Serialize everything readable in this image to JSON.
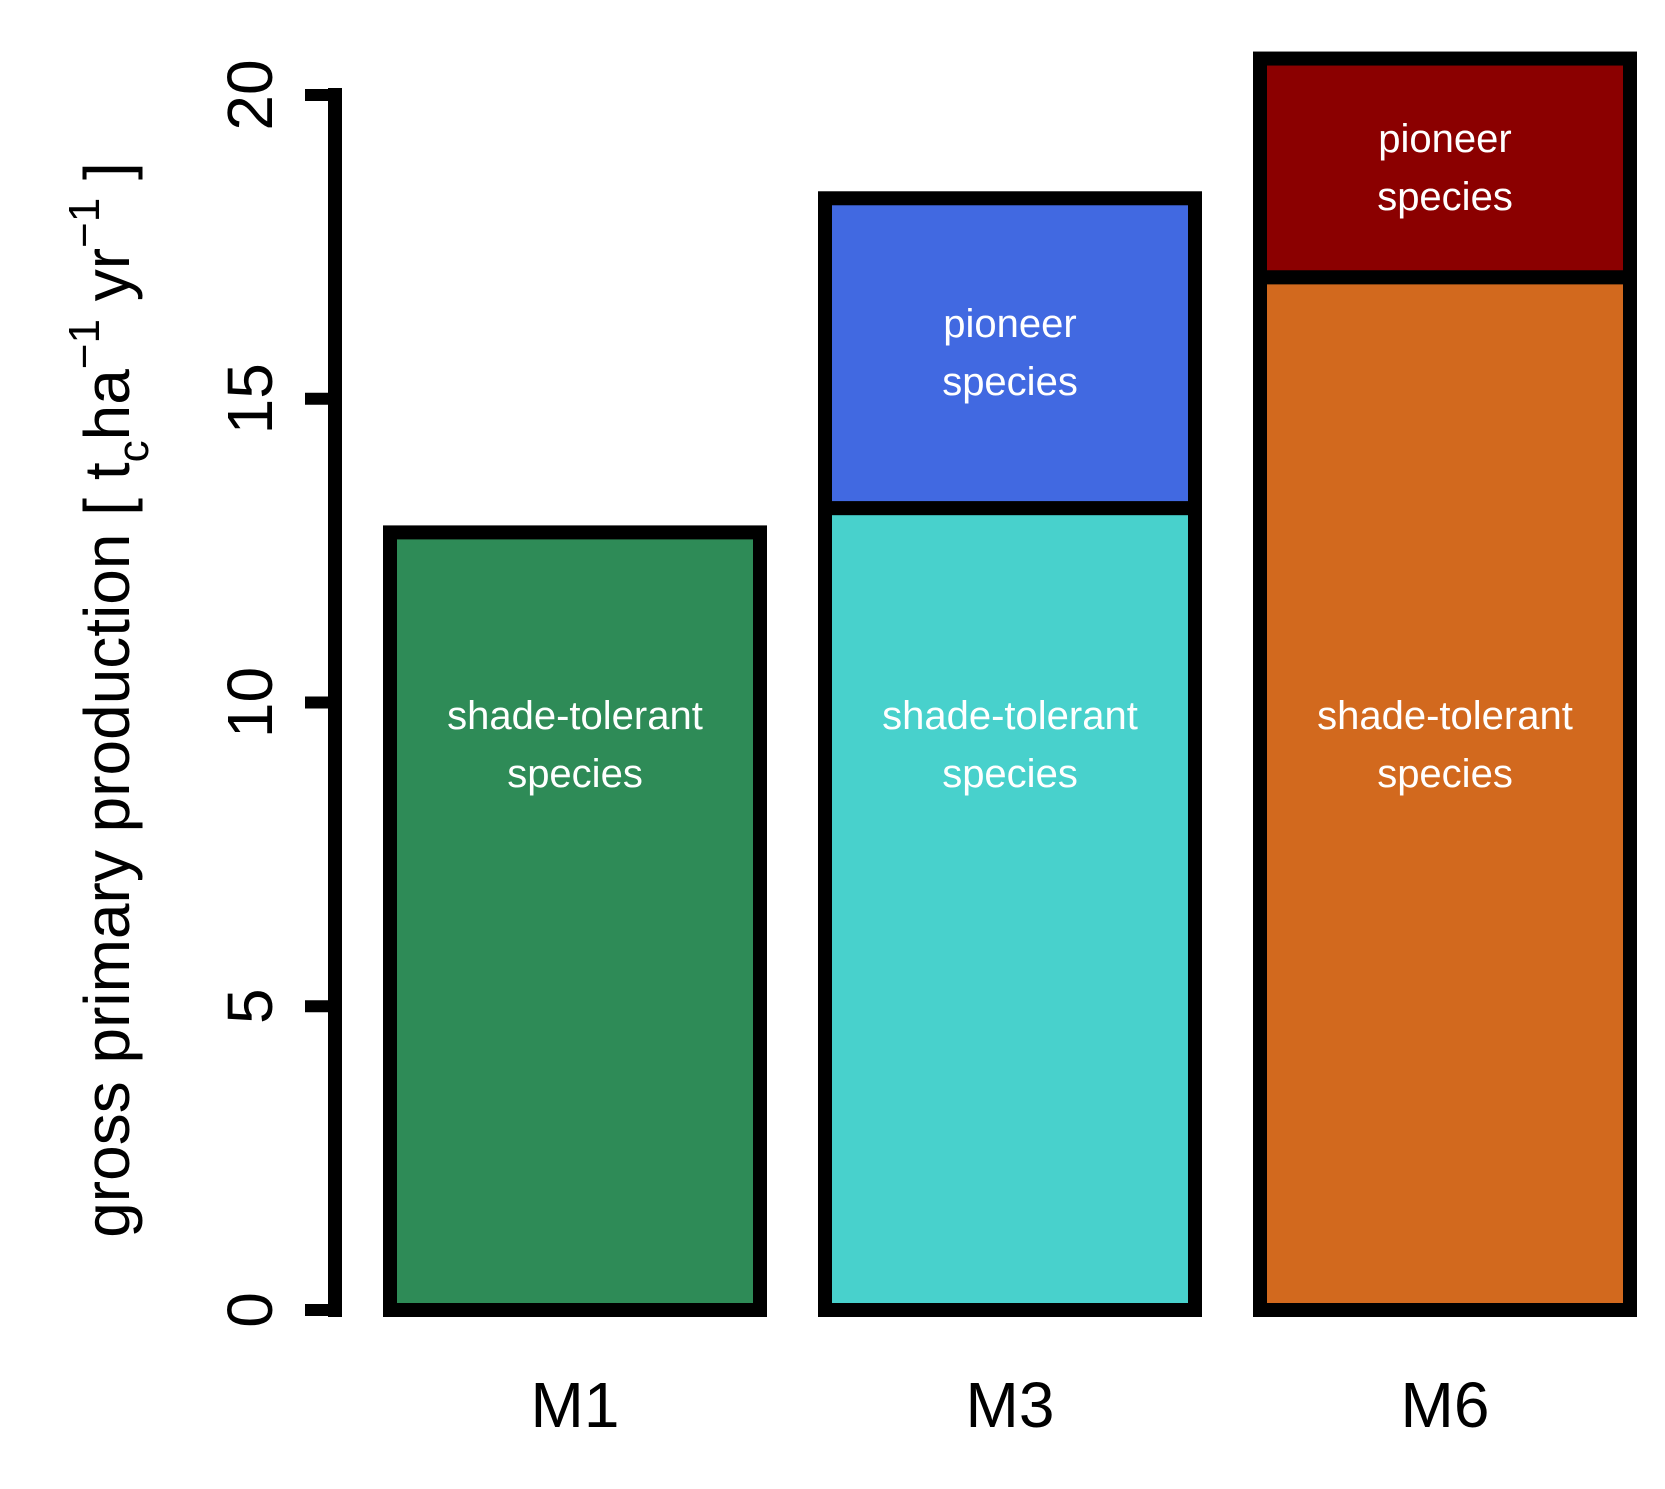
{
  "chart_data": {
    "type": "stacked_bar",
    "y_label": [
      "gross primary production [ t",
      "c",
      "ha",
      "−1",
      " yr",
      "−1",
      " ]"
    ],
    "categories": [
      "M1",
      "M3",
      "M6"
    ],
    "series": [
      {
        "name": "shade-tolerant species",
        "colors": [
          "#2e8b57",
          "#48d1cc",
          "#d2691e"
        ],
        "values": [
          12.8,
          13.2,
          17.0
        ]
      },
      {
        "name": "pioneer species",
        "colors": [
          null,
          "#4169e1",
          "#8b0000"
        ],
        "values": [
          null,
          5.1,
          3.6
        ]
      }
    ],
    "ylim": [
      0,
      20
    ],
    "yticks": [
      0,
      5,
      10,
      15,
      20
    ]
  }
}
